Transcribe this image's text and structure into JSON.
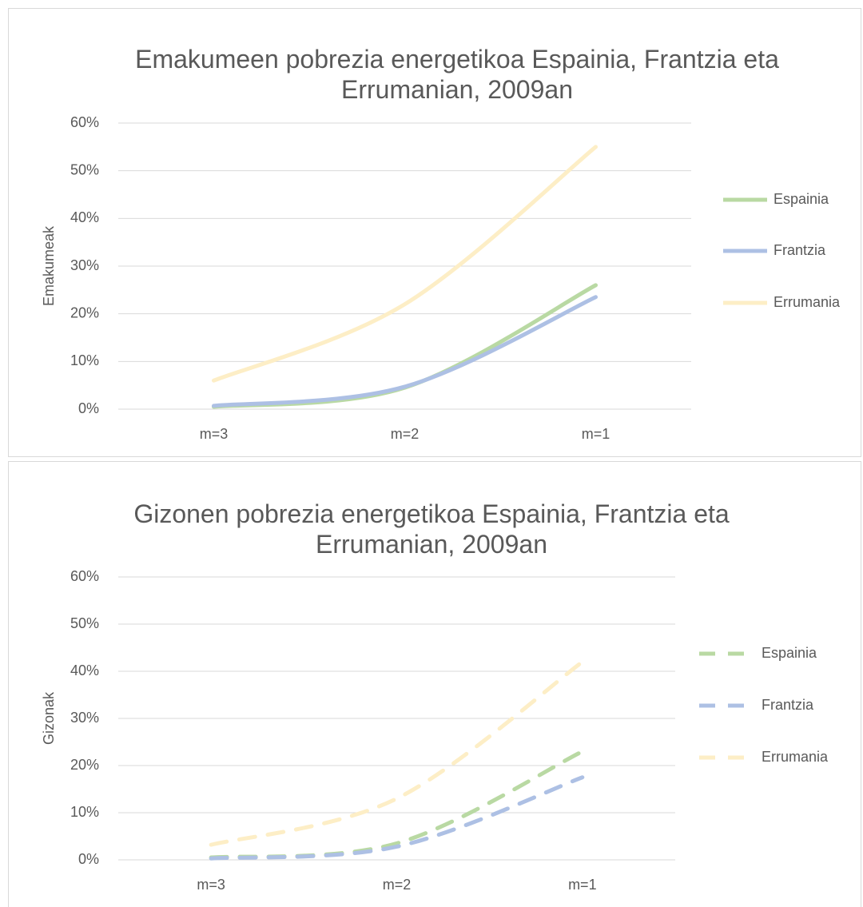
{
  "chart_data": [
    {
      "type": "line",
      "title": "Emakumeen pobrezia energetikoa Espainia, Frantzia eta Errumanian, 2009an",
      "ylabel": "Emakumeak",
      "categories": [
        "m=3",
        "m=2",
        "m=1"
      ],
      "series": [
        {
          "name": "Espainia",
          "color": "#b9d9a3",
          "values": [
            0.5,
            4.5,
            26
          ]
        },
        {
          "name": "Frantzia",
          "color": "#adc0e4",
          "values": [
            0.7,
            4.7,
            23.5
          ]
        },
        {
          "name": "Errumania",
          "color": "#fdeec6",
          "values": [
            6,
            22,
            55
          ]
        }
      ],
      "ylim": [
        0,
        60
      ],
      "yticks": [
        {
          "value": 0,
          "label": "0%"
        },
        {
          "value": 10,
          "label": "10%"
        },
        {
          "value": 20,
          "label": "20%"
        },
        {
          "value": 30,
          "label": "30%"
        },
        {
          "value": 40,
          "label": "40%"
        },
        {
          "value": 50,
          "label": "50%"
        },
        {
          "value": 60,
          "label": "60%"
        }
      ],
      "grid": true,
      "smooth": true,
      "line_style": "solid",
      "legend": "right"
    },
    {
      "type": "line",
      "title": "Gizonen pobrezia energetikoa Espainia, Frantzia eta Errumanian, 2009an",
      "ylabel": "Gizonak",
      "categories": [
        "m=3",
        "m=2",
        "m=1"
      ],
      "series": [
        {
          "name": "Espainia",
          "color": "#b9d9a3",
          "values": [
            0.5,
            3.5,
            23
          ]
        },
        {
          "name": "Frantzia",
          "color": "#adc0e4",
          "values": [
            0.3,
            2.8,
            17.5
          ]
        },
        {
          "name": "Errumania",
          "color": "#fdeec6",
          "values": [
            3.2,
            13,
            42
          ]
        }
      ],
      "ylim": [
        0,
        60
      ],
      "yticks": [
        {
          "value": 0,
          "label": "0%"
        },
        {
          "value": 10,
          "label": "10%"
        },
        {
          "value": 20,
          "label": "20%"
        },
        {
          "value": 30,
          "label": "30%"
        },
        {
          "value": 40,
          "label": "40%"
        },
        {
          "value": 50,
          "label": "50%"
        },
        {
          "value": 60,
          "label": "60%"
        }
      ],
      "grid": true,
      "smooth": true,
      "line_style": "dashed",
      "legend": "right"
    }
  ]
}
